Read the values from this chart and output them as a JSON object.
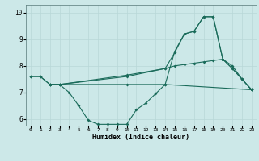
{
  "title": "",
  "xlabel": "Humidex (Indice chaleur)",
  "bg_color": "#cce8e8",
  "line_color": "#1a6b5a",
  "grid_color": "#b8d8d8",
  "xlim": [
    -0.5,
    23.5
  ],
  "ylim": [
    5.75,
    10.3
  ],
  "xticks": [
    0,
    1,
    2,
    3,
    4,
    5,
    6,
    7,
    8,
    9,
    10,
    11,
    12,
    13,
    14,
    15,
    16,
    17,
    18,
    19,
    20,
    21,
    22,
    23
  ],
  "yticks": [
    6,
    7,
    8,
    9,
    10
  ],
  "line1_x": [
    0,
    1,
    2,
    3,
    10,
    14,
    23
  ],
  "line1_y": [
    7.6,
    7.6,
    7.3,
    7.3,
    7.3,
    7.3,
    7.1
  ],
  "line2_x": [
    2,
    3,
    4,
    5,
    6,
    7,
    8,
    9,
    10,
    11,
    12,
    13,
    14,
    15,
    16,
    17,
    18,
    19,
    20,
    21,
    22,
    23
  ],
  "line2_y": [
    7.3,
    7.3,
    7.0,
    6.5,
    5.95,
    5.8,
    5.8,
    5.8,
    5.8,
    6.35,
    6.6,
    6.95,
    7.3,
    8.55,
    9.2,
    9.3,
    9.85,
    9.85,
    8.25,
    7.9,
    7.5,
    7.1
  ],
  "line3_x": [
    2,
    3,
    10,
    14,
    15,
    16,
    17,
    18,
    19,
    20,
    21,
    22,
    23
  ],
  "line3_y": [
    7.3,
    7.3,
    7.6,
    7.9,
    8.5,
    9.2,
    9.3,
    9.85,
    9.85,
    8.25,
    7.9,
    7.5,
    7.1
  ],
  "line4_x": [
    0,
    1,
    2,
    3,
    10,
    14,
    15,
    16,
    17,
    18,
    19,
    20,
    21,
    22,
    23
  ],
  "line4_y": [
    7.6,
    7.6,
    7.3,
    7.3,
    7.65,
    7.9,
    8.0,
    8.05,
    8.1,
    8.15,
    8.2,
    8.25,
    8.0,
    7.5,
    7.1
  ]
}
